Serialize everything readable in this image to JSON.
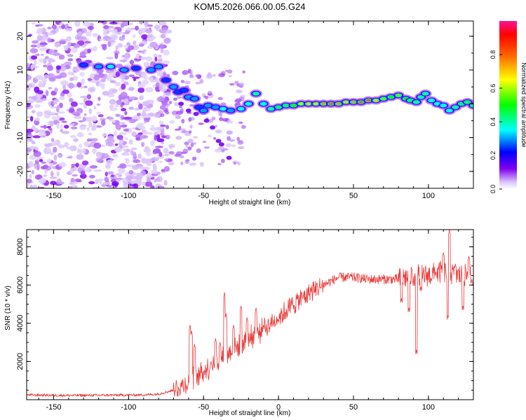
{
  "title": "KOM5.2026.066.00.05.G24",
  "chart_data": [
    {
      "type": "heatmap",
      "name": "spectrogram",
      "xlabel": "Height of straight line (km)",
      "ylabel": "Frequency (Hz)",
      "xlim": [
        -168,
        130
      ],
      "ylim": [
        -25,
        24.5
      ],
      "xticks": [
        -150,
        -100,
        -50,
        0,
        50,
        100
      ],
      "yticks": [
        -20,
        -10,
        0,
        10,
        20
      ],
      "colorbar": {
        "label": "Normalized spectral amplitude",
        "range": [
          0,
          1
        ],
        "ticks": [
          "0.0",
          "0.2",
          "0.4",
          "0.6",
          "0.8"
        ],
        "colors": [
          "#ffffff",
          "#7a00e6",
          "#0000ff",
          "#00ffff",
          "#00ff00",
          "#ffff00",
          "#ff7f00",
          "#ff0000",
          "#ff0080"
        ]
      },
      "ridge": [
        {
          "x": -130,
          "y": 11.5,
          "a": 0.25
        },
        {
          "x": -120,
          "y": 11,
          "a": 0.3
        },
        {
          "x": -112,
          "y": 11,
          "a": 0.35
        },
        {
          "x": -103,
          "y": 10,
          "a": 0.3
        },
        {
          "x": -95,
          "y": 10.5,
          "a": 0.25
        },
        {
          "x": -85,
          "y": 10,
          "a": 0.3
        },
        {
          "x": -80,
          "y": 11,
          "a": 0.3
        },
        {
          "x": -75,
          "y": 7,
          "a": 0.25
        },
        {
          "x": -70,
          "y": 5,
          "a": 0.3
        },
        {
          "x": -67,
          "y": 3.5,
          "a": 0.25
        },
        {
          "x": -63,
          "y": 4,
          "a": 0.25
        },
        {
          "x": -60,
          "y": 2,
          "a": 0.3
        },
        {
          "x": -56,
          "y": 1.5,
          "a": 0.3
        },
        {
          "x": -53,
          "y": -1,
          "a": 0.25
        },
        {
          "x": -50,
          "y": -2,
          "a": 0.3
        },
        {
          "x": -47,
          "y": -0.5,
          "a": 0.3
        },
        {
          "x": -42,
          "y": -1,
          "a": 0.3
        },
        {
          "x": -37,
          "y": -1.5,
          "a": 0.35
        },
        {
          "x": -32,
          "y": -2,
          "a": 0.3
        },
        {
          "x": -25,
          "y": -1.5,
          "a": 0.35
        },
        {
          "x": -20,
          "y": 0,
          "a": 0.35
        },
        {
          "x": -15,
          "y": 3,
          "a": 0.4
        },
        {
          "x": -10,
          "y": 0,
          "a": 0.35
        },
        {
          "x": -5,
          "y": -1.5,
          "a": 0.4
        },
        {
          "x": 0,
          "y": -1,
          "a": 0.45
        },
        {
          "x": 5,
          "y": -0.5,
          "a": 0.45
        },
        {
          "x": 10,
          "y": -0.5,
          "a": 0.5
        },
        {
          "x": 15,
          "y": 0,
          "a": 0.6
        },
        {
          "x": 20,
          "y": 0,
          "a": 0.7
        },
        {
          "x": 25,
          "y": 0,
          "a": 0.7
        },
        {
          "x": 30,
          "y": 0,
          "a": 0.75
        },
        {
          "x": 35,
          "y": 0,
          "a": 0.8
        },
        {
          "x": 40,
          "y": 0,
          "a": 0.75
        },
        {
          "x": 45,
          "y": 0.5,
          "a": 0.7
        },
        {
          "x": 50,
          "y": 0.5,
          "a": 0.75
        },
        {
          "x": 55,
          "y": 0.5,
          "a": 0.8
        },
        {
          "x": 60,
          "y": 1,
          "a": 0.8
        },
        {
          "x": 65,
          "y": 1,
          "a": 0.7
        },
        {
          "x": 70,
          "y": 1.5,
          "a": 0.55
        },
        {
          "x": 75,
          "y": 2,
          "a": 0.5
        },
        {
          "x": 80,
          "y": 2.5,
          "a": 0.55
        },
        {
          "x": 85,
          "y": 1.5,
          "a": 0.5
        },
        {
          "x": 88,
          "y": 1,
          "a": 0.45
        },
        {
          "x": 92,
          "y": 0.5,
          "a": 0.4
        },
        {
          "x": 95,
          "y": 2,
          "a": 0.4
        },
        {
          "x": 98,
          "y": 3,
          "a": 0.4
        },
        {
          "x": 102,
          "y": 1,
          "a": 0.35
        },
        {
          "x": 106,
          "y": 0,
          "a": 0.35
        },
        {
          "x": 110,
          "y": -0.5,
          "a": 0.35
        },
        {
          "x": 114,
          "y": -2,
          "a": 0.35
        },
        {
          "x": 118,
          "y": -1,
          "a": 0.4
        },
        {
          "x": 122,
          "y": 0,
          "a": 0.45
        },
        {
          "x": 126,
          "y": 0.5,
          "a": 0.45
        },
        {
          "x": 130,
          "y": -0.5,
          "a": 0.4
        }
      ]
    },
    {
      "type": "line",
      "name": "snr",
      "xlabel": "Height of straight line (km)",
      "ylabel": "SNR (10 * v/v)",
      "xlim": [
        -168,
        130
      ],
      "ylim": [
        0,
        8900
      ],
      "xticks": [
        -150,
        -100,
        -50,
        0,
        50,
        100
      ],
      "yticks": [
        2000,
        4000,
        6000,
        8000
      ],
      "line_color": "#e83a3a",
      "trend": [
        [
          -168,
          250
        ],
        [
          -140,
          220
        ],
        [
          -110,
          240
        ],
        [
          -90,
          250
        ],
        [
          -80,
          300
        ],
        [
          -70,
          500
        ],
        [
          -62,
          800
        ],
        [
          -55,
          1200
        ],
        [
          -50,
          1500
        ],
        [
          -40,
          2000
        ],
        [
          -30,
          2600
        ],
        [
          -20,
          3200
        ],
        [
          -10,
          3700
        ],
        [
          0,
          4300
        ],
        [
          10,
          5000
        ],
        [
          20,
          5600
        ],
        [
          30,
          6000
        ],
        [
          40,
          6400
        ],
        [
          50,
          6400
        ],
        [
          60,
          6300
        ],
        [
          70,
          6300
        ],
        [
          80,
          6300
        ],
        [
          90,
          6500
        ],
        [
          100,
          6500
        ],
        [
          110,
          6700
        ],
        [
          120,
          6500
        ],
        [
          130,
          6500
        ]
      ],
      "spikes": [
        [
          -59,
          3900
        ],
        [
          -58,
          3600
        ],
        [
          -56,
          2900
        ],
        [
          -45,
          2000
        ],
        [
          -42,
          3200
        ],
        [
          -39,
          3000
        ],
        [
          -36,
          5600
        ],
        [
          -35,
          4500
        ],
        [
          -30,
          3900
        ],
        [
          -25,
          4900
        ],
        [
          -21,
          4300
        ],
        [
          -15,
          4800
        ],
        [
          -10,
          3900
        ],
        [
          82,
          5300
        ],
        [
          87,
          4800
        ],
        [
          92,
          2600
        ],
        [
          95,
          5900
        ],
        [
          105,
          6700
        ],
        [
          110,
          7700
        ],
        [
          113,
          4400
        ],
        [
          114,
          8900
        ],
        [
          118,
          7100
        ],
        [
          123,
          4900
        ],
        [
          127,
          7500
        ],
        [
          129,
          6300
        ]
      ]
    }
  ]
}
